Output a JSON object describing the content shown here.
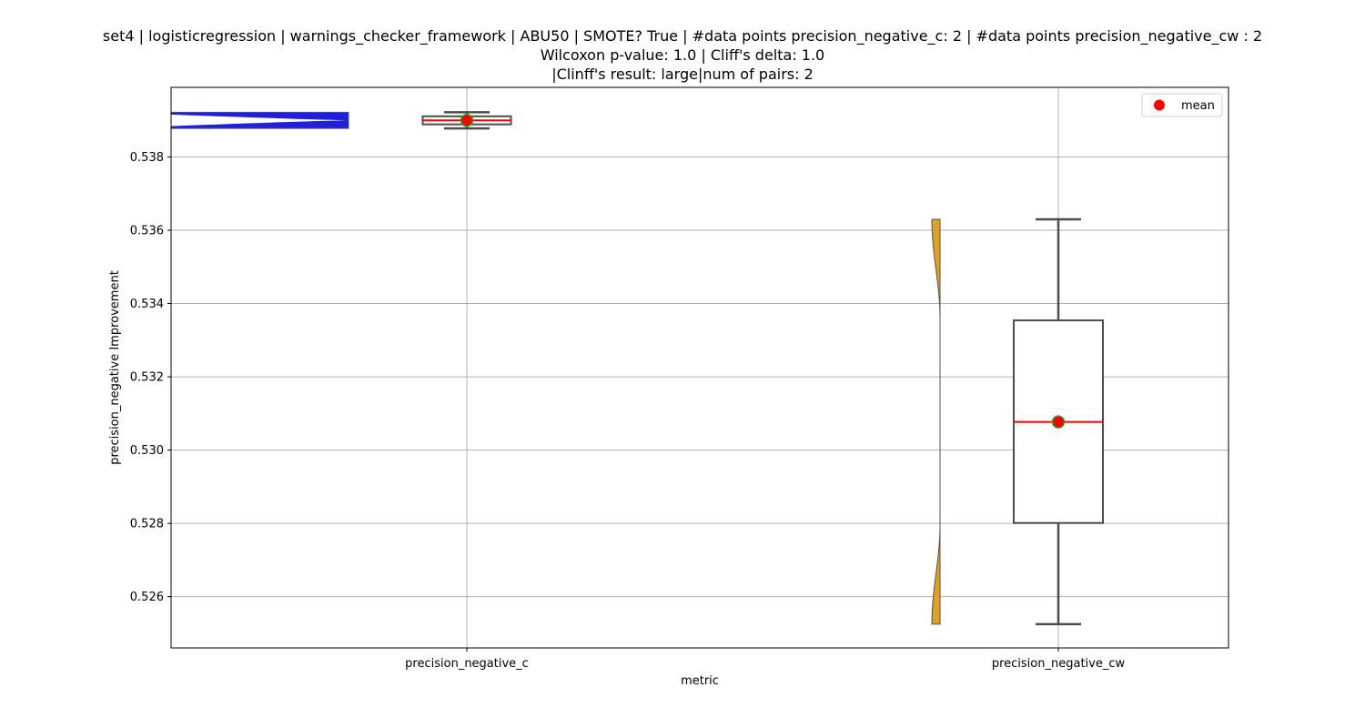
{
  "title": {
    "line1": "set4 | logisticregression | warnings_checker_framework | ABU50 | SMOTE? True | #data points precision_negative_c: 2 | #data points precision_negative_cw : 2",
    "line2": "Wilcoxon p-value: 1.0 | Cliff's delta: 1.0",
    "line3": "|Clinff's result: large|num of pairs: 2"
  },
  "chart_data": {
    "type": "box",
    "title": "set4 | logisticregression | warnings_checker_framework | ABU50 | SMOTE? True | #data points precision_negative_c: 2 | #data points precision_negative_cw : 2",
    "xlabel": "metric",
    "ylabel": "precision_negative Improvement",
    "categories": [
      "precision_negative_c",
      "precision_negative_cw"
    ],
    "ylim": [
      0.5246,
      0.5399
    ],
    "yticks": [
      0.526,
      0.528,
      0.53,
      0.532,
      0.534,
      0.536,
      0.538
    ],
    "ytick_labels": [
      "0.526",
      "0.528",
      "0.530",
      "0.532",
      "0.534",
      "0.536",
      "0.538"
    ],
    "grid": true,
    "legend": {
      "position": "top-right",
      "entries": [
        "mean"
      ]
    },
    "colors": {
      "violin_c": "#1f1fdc",
      "violin_cw": "#e0a020",
      "box_edge": "#4d4d4d",
      "median": "#ff0000",
      "mean_marker": "#ff0000",
      "mean_marker_edge": "#2ca02c",
      "grid": "#b0b0b0"
    },
    "series": [
      {
        "category": "precision_negative_c",
        "values": [
          0.53878,
          0.53922
        ],
        "whisker_low": 0.53878,
        "q1": 0.53889,
        "median": 0.539,
        "q3": 0.53911,
        "whisker_high": 0.53922,
        "mean": 0.539
      },
      {
        "category": "precision_negative_cw",
        "values": [
          0.52525,
          0.5363
        ],
        "whisker_low": 0.52525,
        "q1": 0.52801,
        "median": 0.53077,
        "q3": 0.53354,
        "whisker_high": 0.5363,
        "mean": 0.53077
      }
    ]
  }
}
